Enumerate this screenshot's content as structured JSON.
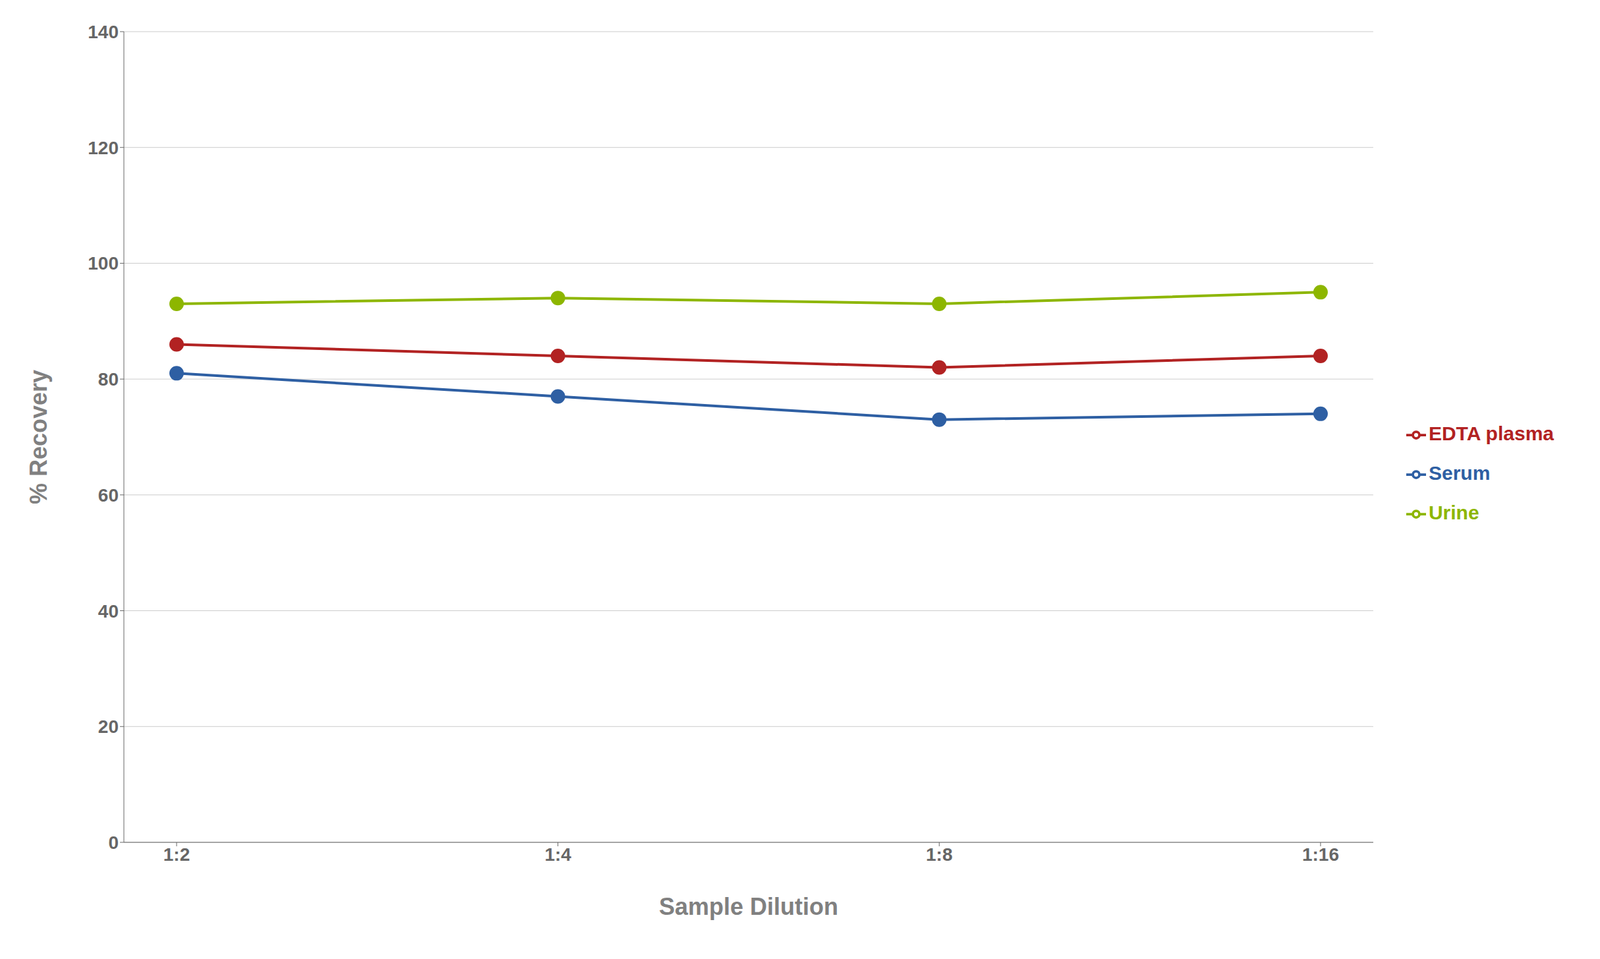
{
  "chart_data": {
    "type": "line",
    "categories": [
      "1:2",
      "1:4",
      "1:8",
      "1:16"
    ],
    "series": [
      {
        "name": "Serum",
        "color": "#2E5FA3",
        "values": [
          81,
          77,
          73,
          74
        ]
      },
      {
        "name": "EDTA plasma",
        "color": "#B22222",
        "values": [
          86,
          84,
          82,
          84
        ]
      },
      {
        "name": "Urine",
        "color": "#8DB600",
        "values": [
          93,
          94,
          93,
          95
        ]
      }
    ],
    "xlabel": "Sample Dilution",
    "ylabel": "% Recovery",
    "ylim": [
      0,
      140
    ],
    "yticks": [
      0,
      20,
      40,
      60,
      80,
      100,
      120,
      140
    ],
    "grid": true,
    "legend": "right",
    "marker": "circle"
  }
}
